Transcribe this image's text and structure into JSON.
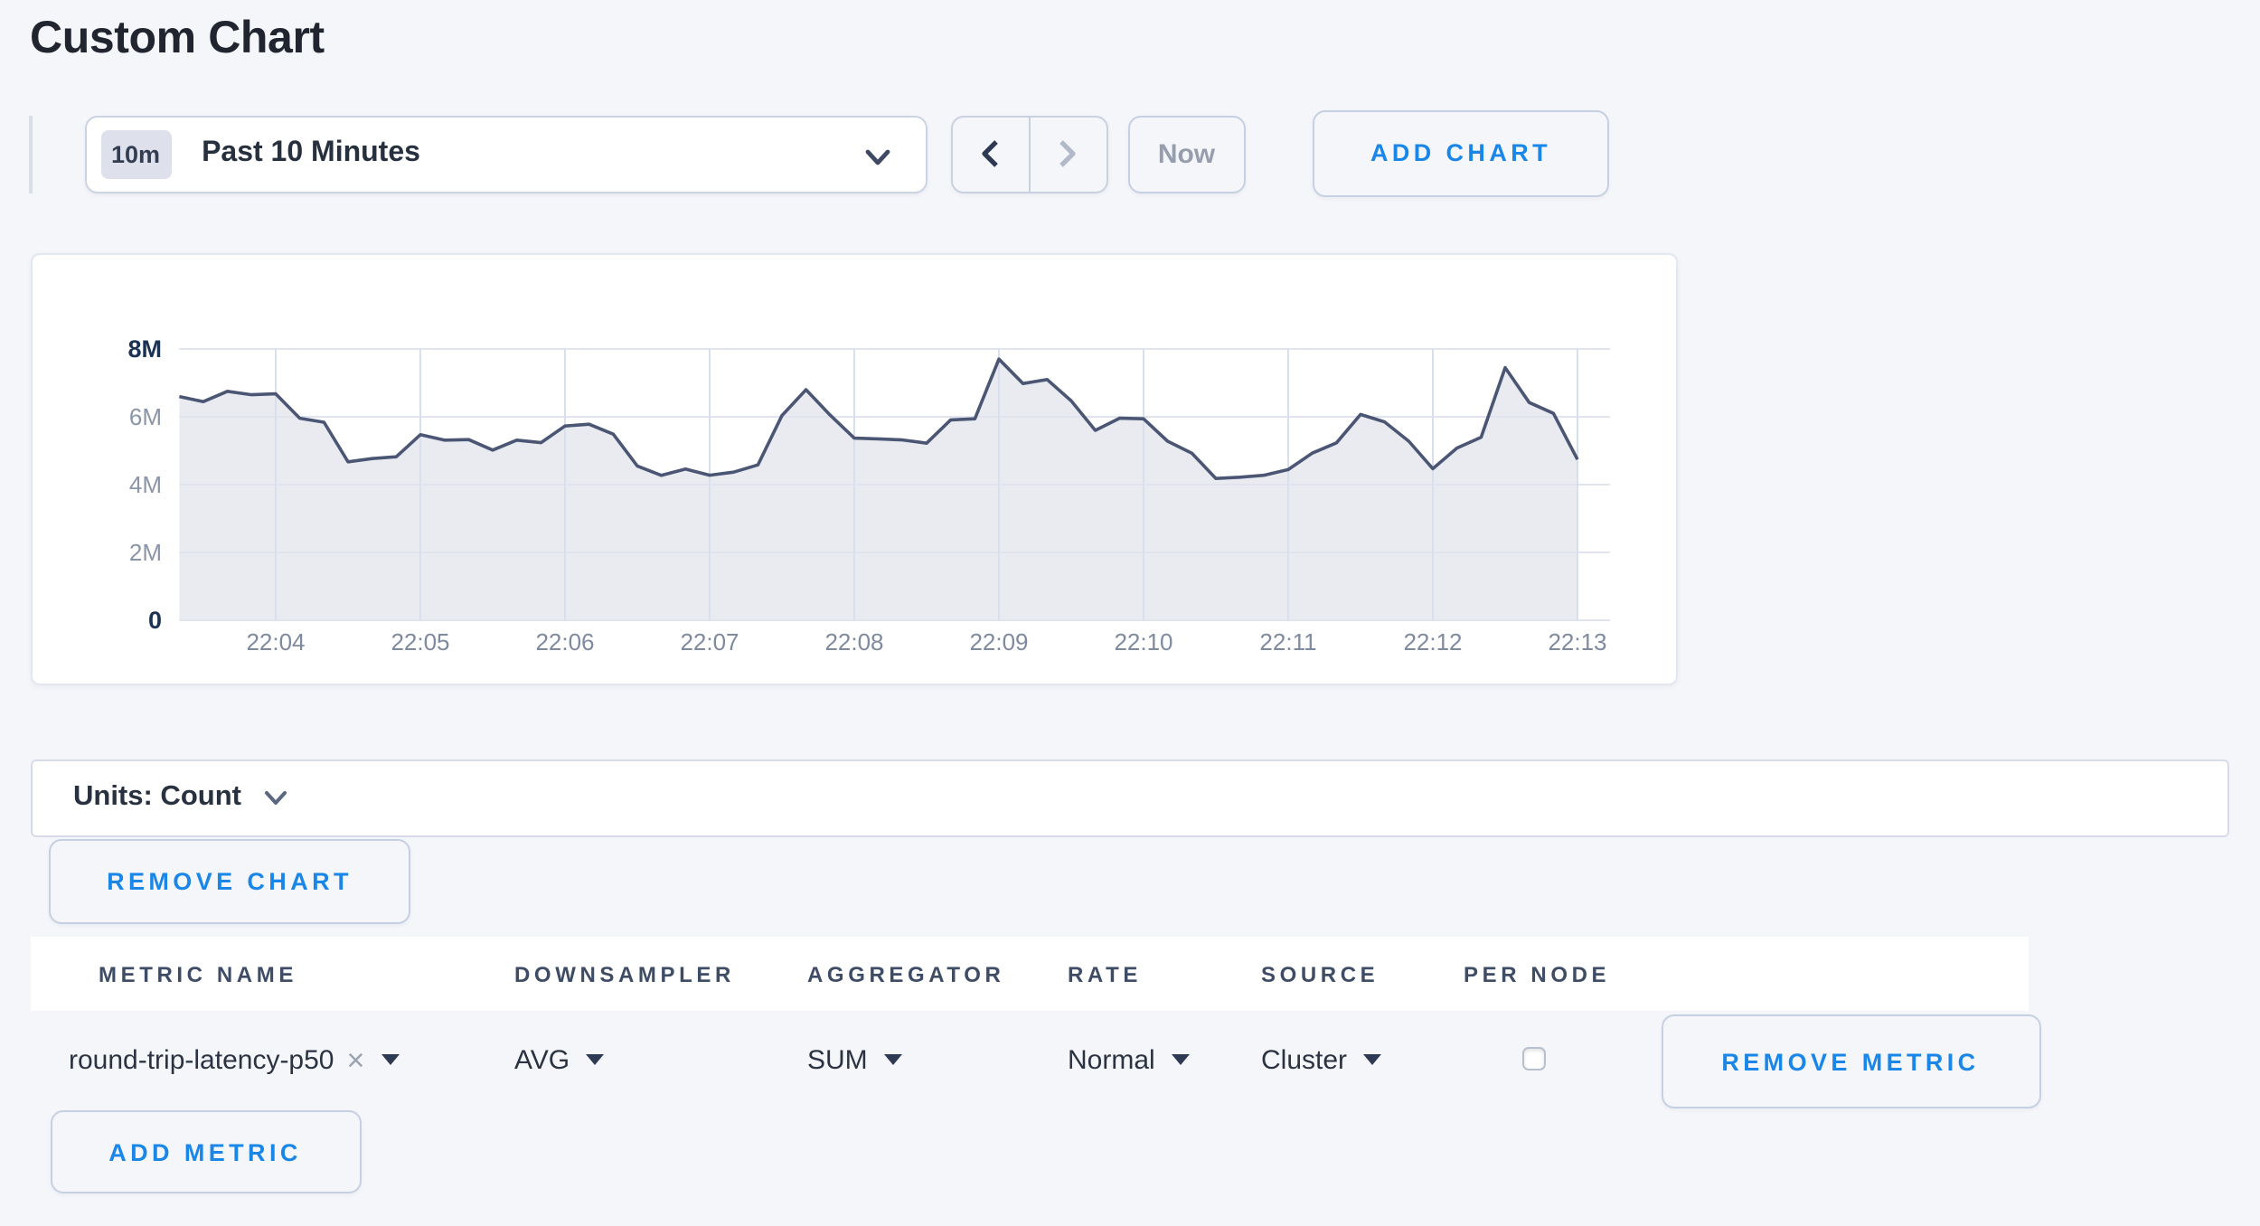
{
  "page": {
    "title": "Custom Chart",
    "background": "#f4f6fa",
    "accent_blue": "#1a86e8"
  },
  "toolbar": {
    "range_badge": "10m",
    "range_label": "Past 10 Minutes",
    "prev_icon": "chevron-left",
    "next_icon": "chevron-right",
    "now_label": "Now",
    "add_chart_label": "ADD CHART"
  },
  "chart_data": {
    "type": "area",
    "title": "",
    "xlabel": "",
    "ylabel": "",
    "unit": "Count",
    "ylim": [
      0,
      8000000
    ],
    "y_ticks": [
      "0",
      "2M",
      "4M",
      "6M",
      "8M"
    ],
    "x_ticks": [
      "22:04",
      "22:05",
      "22:06",
      "22:07",
      "22:08",
      "22:09",
      "22:10",
      "22:11",
      "22:12",
      "22:13"
    ],
    "start_time": "22:03:20",
    "interval_seconds": 10,
    "grid": true,
    "legend": "none",
    "series": [
      {
        "name": "round-trip-latency-p50",
        "values": [
          6600000,
          6450000,
          6750000,
          6650000,
          6680000,
          5960000,
          5840000,
          4670000,
          4770000,
          4820000,
          5470000,
          5310000,
          5330000,
          5020000,
          5310000,
          5240000,
          5730000,
          5780000,
          5490000,
          4550000,
          4270000,
          4460000,
          4280000,
          4370000,
          4580000,
          6040000,
          6800000,
          6050000,
          5370000,
          5350000,
          5320000,
          5220000,
          5910000,
          5940000,
          7700000,
          6980000,
          7100000,
          6470000,
          5600000,
          5960000,
          5940000,
          5280000,
          4930000,
          4180000,
          4220000,
          4280000,
          4440000,
          4930000,
          5230000,
          6070000,
          5850000,
          5280000,
          4470000,
          5080000,
          5400000,
          7450000,
          6420000,
          6100000,
          4740000
        ]
      }
    ],
    "colors": {
      "line": "#4a5673",
      "fill": "#e9ebf1",
      "grid_h": "#dfe4ee",
      "grid_v": "#d9dfeb",
      "tick_strong": "#1c3252",
      "tick_muted": "#8a95a9",
      "x_label": "#7e8aa0"
    }
  },
  "units_bar": {
    "label": "Units: Count"
  },
  "chart_actions": {
    "remove_chart_label": "REMOVE CHART"
  },
  "metrics_table": {
    "headers": [
      "METRIC NAME",
      "DOWNSAMPLER",
      "AGGREGATOR",
      "RATE",
      "SOURCE",
      "PER NODE"
    ],
    "rows": [
      {
        "metric_name": "round-trip-latency-p50",
        "clear_icon": "×",
        "downsampler": "AVG",
        "aggregator": "SUM",
        "rate": "Normal",
        "source": "Cluster",
        "per_node_checked": false,
        "remove_label": "REMOVE METRIC"
      }
    ],
    "add_metric_label": "ADD METRIC"
  }
}
